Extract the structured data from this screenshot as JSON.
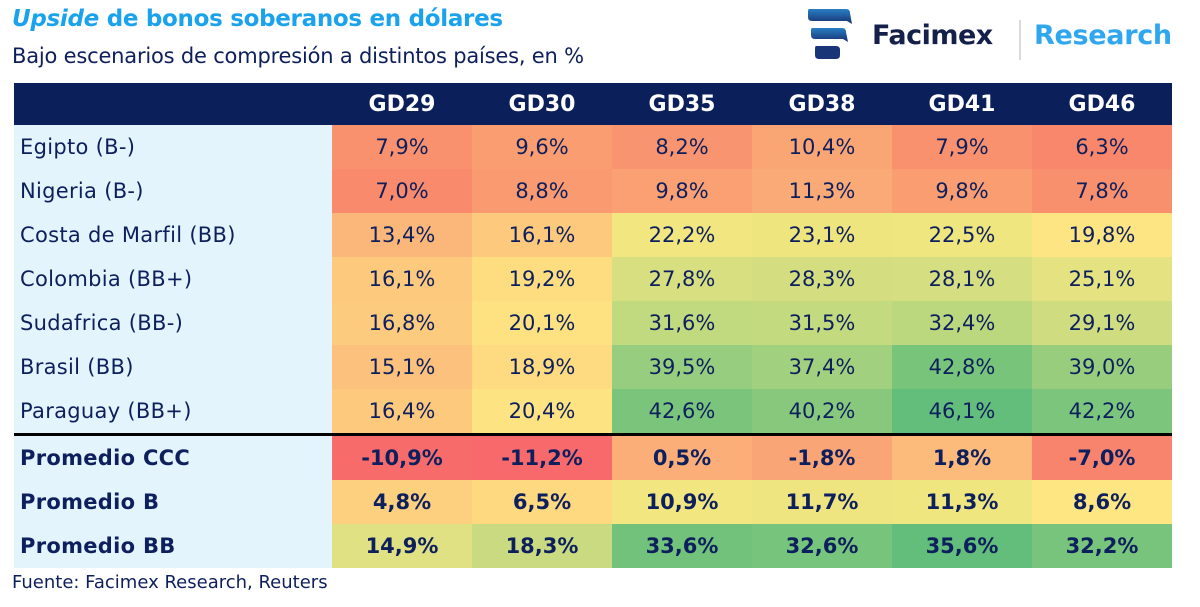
{
  "header": {
    "title_italic": "Upside",
    "title_rest": " de bonos soberanos en dólares",
    "subtitle": "Bajo escenarios de compresión a distintos países, en %"
  },
  "logo": {
    "brand": "Facimex",
    "division": "Research",
    "icon": "facimex-logo-icon"
  },
  "colors": {
    "header_bg": "#0b1f5b",
    "label_bg": "#e3f4fd",
    "title": "#1aa3ec",
    "text": "#0d1f5c",
    "scale_low": "#f8696b",
    "scale_mid": "#ffeb84",
    "scale_high": "#63be7b"
  },
  "source": "Fuente: Facimex Research, Reuters",
  "chart_data": {
    "type": "heatmap",
    "title": "Upside de bonos soberanos en dólares",
    "subtitle": "Bajo escenarios de compresión a distintos países, en %",
    "columns": [
      "GD29",
      "GD30",
      "GD35",
      "GD38",
      "GD41",
      "GD46"
    ],
    "rows": [
      {
        "label": "Egipto (B-)",
        "values": [
          7.9,
          9.6,
          8.2,
          10.4,
          7.9,
          6.3
        ],
        "display": [
          "7,9%",
          "9,6%",
          "8,2%",
          "10,4%",
          "7,9%",
          "6,3%"
        ],
        "colors": [
          "#f9916e",
          "#fa9e71",
          "#f99470",
          "#faa574",
          "#f9916e",
          "#f8876b"
        ]
      },
      {
        "label": "Nigeria (B-)",
        "values": [
          7.0,
          8.8,
          9.8,
          11.3,
          9.8,
          7.8
        ],
        "display": [
          "7,0%",
          "8,8%",
          "9,8%",
          "11,3%",
          "9,8%",
          "7,8%"
        ],
        "colors": [
          "#f98b6c",
          "#f99a71",
          "#faa073",
          "#faaa76",
          "#fa9e71",
          "#f88f6d"
        ]
      },
      {
        "label": "Costa de Marfil (BB)",
        "values": [
          13.4,
          16.1,
          22.2,
          23.1,
          22.5,
          19.8
        ],
        "display": [
          "13,4%",
          "16,1%",
          "22,2%",
          "23,1%",
          "22,5%",
          "19,8%"
        ],
        "colors": [
          "#fbb77a",
          "#fdc97d",
          "#f1e67f",
          "#eee57f",
          "#efe67f",
          "#fde583"
        ]
      },
      {
        "label": "Colombia (BB+)",
        "values": [
          16.1,
          19.2,
          27.8,
          28.3,
          28.1,
          25.1
        ],
        "display": [
          "16,1%",
          "19,2%",
          "27,8%",
          "28,3%",
          "28,1%",
          "25,1%"
        ],
        "colors": [
          "#fdc97d",
          "#fedd81",
          "#d7df80",
          "#d4de80",
          "#d5de80",
          "#e4e281"
        ]
      },
      {
        "label": "Sudafrica (BB-)",
        "values": [
          16.8,
          20.1,
          31.6,
          31.5,
          32.4,
          29.1
        ],
        "display": [
          "16,8%",
          "20,1%",
          "31,6%",
          "31,5%",
          "32,4%",
          "29,1%"
        ],
        "colors": [
          "#fdcb7e",
          "#fee282",
          "#c2da7f",
          "#c3da7f",
          "#bcd87e",
          "#cfdd80"
        ]
      },
      {
        "label": "Brasil (BB)",
        "values": [
          15.1,
          18.9,
          39.5,
          37.4,
          42.8,
          39.0
        ],
        "display": [
          "15,1%",
          "18,9%",
          "39,5%",
          "37,4%",
          "42,8%",
          "39,0%"
        ],
        "colors": [
          "#fcc17c",
          "#fedb81",
          "#97cd7e",
          "#a1d07f",
          "#79c47b",
          "#98cd7e"
        ]
      },
      {
        "label": "Paraguay (BB+)",
        "values": [
          16.4,
          20.4,
          42.6,
          40.2,
          46.1,
          42.2
        ],
        "display": [
          "16,4%",
          "20,4%",
          "42,6%",
          "40,2%",
          "46,1%",
          "42,2%"
        ],
        "colors": [
          "#fdc97d",
          "#fee382",
          "#7ac47c",
          "#88c87d",
          "#64be7b",
          "#7cc57c"
        ]
      }
    ],
    "averages": [
      {
        "label": "Promedio CCC",
        "values": [
          -10.9,
          -11.2,
          0.5,
          -1.8,
          1.8,
          -7.0
        ],
        "display": [
          "-10,9%",
          "-11,2%",
          "0,5%",
          "-1,8%",
          "1,8%",
          "-7,0%"
        ],
        "colors": [
          "#f86b6b",
          "#f8696b",
          "#fbae78",
          "#faa575",
          "#fcbb7b",
          "#f9846e"
        ]
      },
      {
        "label": "Promedio B",
        "values": [
          4.8,
          6.5,
          10.9,
          11.7,
          11.3,
          8.6
        ],
        "display": [
          "4,8%",
          "6,5%",
          "10,9%",
          "11,7%",
          "11,3%",
          "8,6%"
        ],
        "colors": [
          "#fdd07f",
          "#fed980",
          "#f1e680",
          "#efe580",
          "#f0e680",
          "#fee683"
        ]
      },
      {
        "label": "Promedio BB",
        "values": [
          14.9,
          18.3,
          33.6,
          32.6,
          35.6,
          32.2
        ],
        "display": [
          "14,9%",
          "18,3%",
          "33,6%",
          "32,6%",
          "35,6%",
          "32,2%"
        ],
        "colors": [
          "#dfe183",
          "#c9da80",
          "#73c27c",
          "#77c47c",
          "#64be7b",
          "#79c47c"
        ]
      }
    ]
  }
}
